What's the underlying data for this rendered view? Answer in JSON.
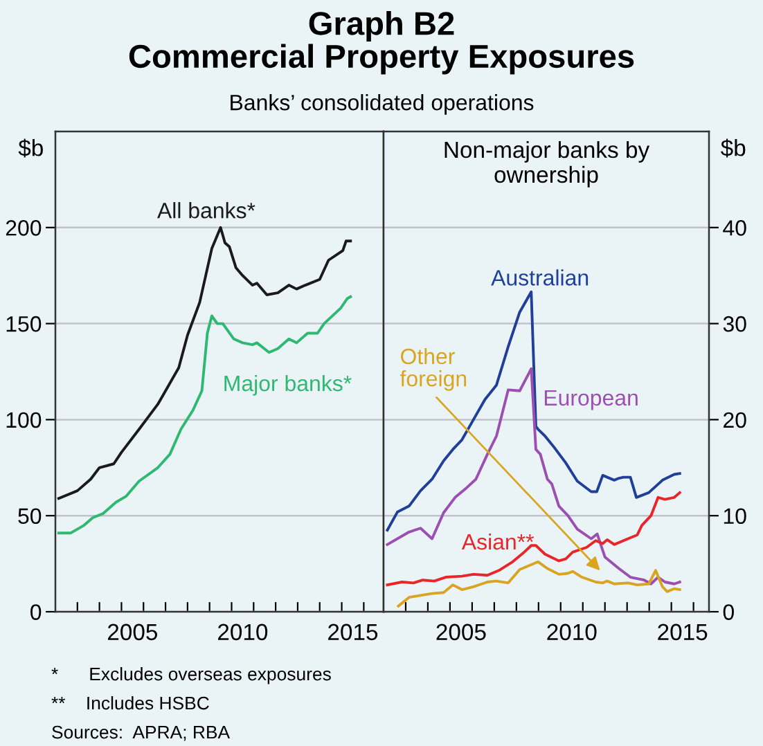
{
  "chart_data": [
    {
      "type": "line",
      "title": "Graph B2\nCommercial Property Exposures",
      "subtitle": "Banks’ consolidated operations",
      "ylabel": "$b",
      "xlim": [
        2002,
        2016.9
      ],
      "ylim": [
        0,
        250
      ],
      "yticks": [
        0,
        50,
        100,
        150,
        200
      ],
      "xticks": [
        {
          "value": 2003,
          "label": null
        },
        {
          "value": 2004,
          "label": null
        },
        {
          "value": 2005,
          "label": null
        },
        {
          "value": 2006,
          "label": null
        },
        {
          "value": 2007,
          "label": null
        },
        {
          "value": 2008,
          "label": null
        },
        {
          "value": 2009,
          "label": null
        },
        {
          "value": 2010,
          "label": null
        },
        {
          "value": 2011,
          "label": null
        },
        {
          "value": 2012,
          "label": null
        },
        {
          "value": 2013,
          "label": null
        },
        {
          "value": 2014,
          "label": null
        },
        {
          "value": 2015,
          "label": null
        },
        {
          "value": 2016,
          "label": null
        },
        {
          "value": 2005.5,
          "label": "2005"
        },
        {
          "value": 2010.5,
          "label": "2010"
        },
        {
          "value": 2015.5,
          "label": "2015"
        }
      ],
      "grid": "y",
      "legend": false,
      "tick_labels": "xy",
      "series": [
        {
          "name": "All banks*",
          "color": "#1a1a1a",
          "x": [
            2002.15,
            2003.0,
            2003.6,
            2004.0,
            2004.65,
            2005.0,
            2005.8,
            2006.65,
            2007.1,
            2007.6,
            2008.0,
            2008.55,
            2009.1,
            2009.5,
            2009.7,
            2009.9,
            2010.2,
            2010.5,
            2010.95,
            2011.15,
            2011.6,
            2012.1,
            2012.6,
            2012.95,
            2013.35,
            2014.0,
            2014.4,
            2015.05,
            2015.2,
            2015.4
          ],
          "values": [
            59,
            63,
            69,
            75,
            77,
            83,
            95,
            108,
            117,
            127,
            144,
            161,
            189,
            200,
            192,
            190,
            179,
            175,
            170,
            171,
            165,
            166,
            170,
            168,
            170,
            173,
            183,
            188,
            193,
            193
          ]
        },
        {
          "name": "Major banks*",
          "color": "#2fb872",
          "x": [
            2002.15,
            2002.7,
            2003.3,
            2003.7,
            2004.15,
            2004.75,
            2005.2,
            2005.8,
            2006.65,
            2007.2,
            2007.7,
            2008.25,
            2008.65,
            2008.9,
            2009.1,
            2009.35,
            2009.6,
            2010.1,
            2010.5,
            2010.95,
            2011.15,
            2011.7,
            2012.1,
            2012.6,
            2012.95,
            2013.45,
            2013.9,
            2014.2,
            2014.95,
            2015.25,
            2015.4
          ],
          "values": [
            41,
            41,
            45,
            49,
            51,
            57,
            60,
            68,
            75,
            82,
            95,
            105,
            115,
            145,
            154,
            150,
            150,
            142,
            140,
            139,
            140,
            135,
            137,
            142,
            140,
            145,
            145,
            150,
            158,
            163,
            164
          ]
        }
      ],
      "annotations": [
        "*      Excludes overseas exposures",
        "**    Includes HSBC",
        "Sources:  APRA; RBA"
      ]
    },
    {
      "type": "line",
      "title": "Non-major banks by\nownership",
      "y2label": "$b",
      "xlim": [
        2002,
        2016.7
      ],
      "y2lim": [
        0,
        50
      ],
      "y2ticks": [
        0,
        10,
        20,
        30,
        40
      ],
      "xticks": [
        {
          "value": 2003,
          "label": null
        },
        {
          "value": 2004,
          "label": null
        },
        {
          "value": 2005,
          "label": null
        },
        {
          "value": 2006,
          "label": null
        },
        {
          "value": 2007,
          "label": null
        },
        {
          "value": 2008,
          "label": null
        },
        {
          "value": 2009,
          "label": null
        },
        {
          "value": 2010,
          "label": null
        },
        {
          "value": 2011,
          "label": null
        },
        {
          "value": 2012,
          "label": null
        },
        {
          "value": 2013,
          "label": null
        },
        {
          "value": 2014,
          "label": null
        },
        {
          "value": 2015,
          "label": null
        },
        {
          "value": 2016,
          "label": null
        },
        {
          "value": 2005.5,
          "label": "2005"
        },
        {
          "value": 2010.5,
          "label": "2010"
        },
        {
          "value": 2015.5,
          "label": "2015"
        }
      ],
      "grid": "y",
      "legend": false,
      "series": [
        {
          "name": "Australian",
          "color": "#1f3f99",
          "axis": "y2",
          "x": [
            2002.17,
            2002.63,
            2003.15,
            2003.67,
            2004.19,
            2004.71,
            2005.13,
            2005.54,
            2006.06,
            2006.58,
            2007.1,
            2007.63,
            2008.15,
            2008.67,
            2008.88,
            2008.98,
            2009.29,
            2009.71,
            2010.23,
            2010.75,
            2011.38,
            2011.63,
            2011.9,
            2012.42,
            2012.63,
            2012.83,
            2013.15,
            2013.42,
            2013.98,
            2014.6,
            2015.13,
            2015.38
          ],
          "values": [
            8.5,
            10.4,
            11.0,
            12.6,
            13.8,
            15.7,
            16.9,
            17.9,
            20.0,
            22.1,
            23.6,
            27.6,
            31.2,
            33.3,
            19.3,
            19.0,
            18.3,
            17.1,
            15.5,
            13.6,
            12.5,
            12.5,
            14.2,
            13.7,
            13.9,
            14.0,
            14.0,
            11.9,
            12.4,
            13.7,
            14.3,
            14.4
          ]
        },
        {
          "name": "European",
          "color": "#9b4fb0",
          "axis": "y2",
          "x": [
            2002.17,
            2003.15,
            2003.67,
            2004.19,
            2004.71,
            2005.23,
            2005.75,
            2006.17,
            2006.69,
            2007.1,
            2007.63,
            2008.15,
            2008.67,
            2008.88,
            2009.08,
            2009.4,
            2009.6,
            2009.92,
            2010.33,
            2010.75,
            2011.38,
            2011.65,
            2012.0,
            2012.63,
            2013.15,
            2013.77,
            2014.08,
            2014.4,
            2014.71,
            2015.13,
            2015.38
          ],
          "values": [
            7.0,
            8.3,
            8.7,
            7.6,
            10.3,
            11.9,
            12.9,
            13.8,
            16.4,
            18.3,
            23.1,
            23.0,
            25.3,
            16.9,
            16.4,
            13.8,
            13.3,
            11.0,
            10.0,
            8.6,
            7.6,
            8.1,
            5.7,
            4.5,
            3.6,
            3.3,
            2.9,
            3.6,
            3.1,
            2.9,
            3.1
          ]
        },
        {
          "name": "Asian**",
          "color": "#e8262a",
          "axis": "y2",
          "x": [
            2002.17,
            2002.83,
            2003.35,
            2003.77,
            2004.29,
            2004.81,
            2005.54,
            2006.06,
            2006.69,
            2007.21,
            2007.83,
            2008.35,
            2008.67,
            2008.88,
            2009.29,
            2009.92,
            2010.23,
            2010.54,
            2011.17,
            2011.58,
            2011.9,
            2012.1,
            2012.42,
            2013.04,
            2013.46,
            2013.67,
            2014.08,
            2014.4,
            2014.71,
            2015.13,
            2015.38
          ],
          "values": [
            2.8,
            3.1,
            3.0,
            3.3,
            3.2,
            3.6,
            3.7,
            3.9,
            3.8,
            4.3,
            5.2,
            6.2,
            6.9,
            6.9,
            6.0,
            5.3,
            5.5,
            6.2,
            6.7,
            7.4,
            7.1,
            7.5,
            7.0,
            7.6,
            8.0,
            9.0,
            10.0,
            11.9,
            11.7,
            11.9,
            12.4
          ]
        },
        {
          "name": "Other foreign",
          "color": "#d9a521",
          "axis": "y2",
          "x": [
            2002.67,
            2003.15,
            2003.67,
            2004.19,
            2004.71,
            2005.13,
            2005.54,
            2006.06,
            2006.69,
            2007.1,
            2007.63,
            2008.15,
            2008.67,
            2008.98,
            2009.4,
            2009.92,
            2010.33,
            2010.54,
            2010.96,
            2011.58,
            2011.9,
            2012.1,
            2012.42,
            2013.04,
            2013.46,
            2013.98,
            2014.29,
            2014.6,
            2014.81,
            2015.13,
            2015.38
          ],
          "values": [
            0.6,
            1.5,
            1.7,
            1.9,
            2.0,
            2.8,
            2.3,
            2.6,
            3.1,
            3.2,
            3.0,
            4.4,
            4.9,
            5.2,
            4.5,
            3.9,
            4.0,
            4.2,
            3.6,
            3.1,
            3.0,
            3.2,
            2.9,
            3.0,
            2.8,
            2.9,
            4.3,
            2.6,
            2.1,
            2.4,
            2.3
          ]
        }
      ]
    }
  ]
}
